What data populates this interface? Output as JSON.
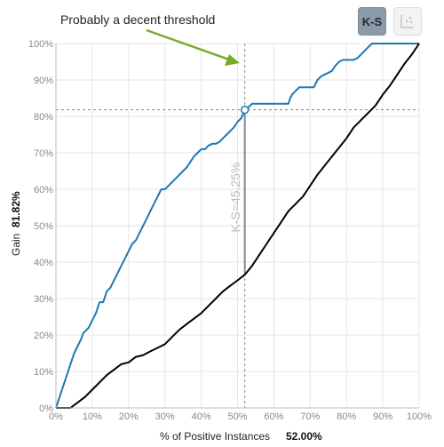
{
  "toolbar": {
    "ks_label": "K-S",
    "ks_button_color": "#8a9aa7",
    "scatter_icon": "scatter-plot-icon"
  },
  "chart_data": {
    "type": "line",
    "title": "",
    "annotation": "Probably a decent threshold",
    "annotation_arrow_color": "#7aab28",
    "xlabel": "% of Positive Instances",
    "xvalue": "52.00%",
    "ylabel": "Gain",
    "yvalue": "81.82%",
    "ks_label": "K-S=45.25%",
    "xlim": [
      0,
      100
    ],
    "ylim": [
      0,
      100
    ],
    "grid": true,
    "threshold": {
      "x": 52.0,
      "y": 81.82,
      "y_lower": 36.57
    },
    "x_ticks": [
      "0%",
      "10%",
      "20%",
      "30%",
      "40%",
      "50%",
      "60%",
      "70%",
      "80%",
      "90%",
      "100%"
    ],
    "y_ticks": [
      "0%",
      "10%",
      "20%",
      "30%",
      "40%",
      "50%",
      "60%",
      "70%",
      "80%",
      "90%",
      "100%"
    ],
    "series": [
      {
        "color": "#1f78b4",
        "x": [
          0,
          2,
          4,
          5,
          6,
          6.5,
          7,
          7.5,
          8,
          9,
          10,
          11,
          12,
          13,
          14,
          15,
          16,
          17,
          18,
          19,
          20,
          21,
          22,
          23,
          24,
          25,
          26,
          27,
          28,
          29,
          30,
          31,
          32,
          33,
          34,
          35,
          36,
          37,
          38,
          39,
          40,
          41,
          42,
          43,
          44,
          45,
          46,
          47,
          48,
          49,
          50,
          51,
          52,
          53,
          54,
          56,
          58,
          60,
          62,
          64,
          64.5,
          65,
          66,
          67,
          68,
          69,
          70,
          71,
          72,
          73,
          74,
          75,
          76,
          77,
          78,
          79,
          80,
          81,
          82,
          83,
          84,
          85,
          86,
          87,
          88,
          89,
          90,
          95,
          100
        ],
        "y": [
          0,
          6,
          12,
          15,
          17,
          18,
          19,
          20.5,
          21,
          22,
          24,
          26,
          29,
          29,
          32,
          33,
          35,
          37,
          39,
          41,
          43,
          45,
          46,
          48,
          50,
          52,
          54,
          56,
          58,
          60,
          60,
          61,
          62,
          63,
          64,
          65,
          66,
          67.5,
          69,
          70,
          71,
          71,
          72,
          72.5,
          72.5,
          73,
          74,
          75,
          76,
          77,
          78.5,
          79.5,
          81.82,
          82.5,
          83.5,
          83.5,
          83.5,
          83.5,
          83.5,
          83.5,
          85,
          86,
          87,
          88,
          88,
          88,
          88,
          88,
          90,
          91,
          91.5,
          92,
          92.5,
          94,
          95,
          95.5,
          95.5,
          95.5,
          95.5,
          96,
          97,
          98,
          99,
          100,
          100,
          100,
          100,
          100,
          100
        ]
      },
      {
        "color": "#000000",
        "x": [
          0,
          2,
          4,
          6,
          8,
          10,
          12,
          14,
          16,
          18,
          20,
          22,
          24,
          26,
          28,
          30,
          32,
          34,
          36,
          38,
          40,
          42,
          44,
          46,
          48,
          50,
          52,
          54,
          56,
          58,
          60,
          62,
          64,
          66,
          68,
          70,
          72,
          74,
          76,
          78,
          80,
          82,
          84,
          86,
          88,
          90,
          92,
          94,
          96,
          98,
          100
        ],
        "y": [
          0,
          0,
          0,
          1.5,
          3,
          5,
          7,
          9,
          10.5,
          12,
          12.5,
          14,
          14.5,
          15.5,
          16.5,
          17.5,
          19.5,
          21.5,
          23,
          24.5,
          26,
          28,
          30,
          32,
          33.5,
          35,
          36.57,
          39,
          42,
          45,
          48,
          51,
          54,
          56,
          58,
          61,
          64,
          66.5,
          69,
          71.5,
          74,
          77,
          79,
          81,
          83,
          86,
          88.5,
          91.5,
          94.5,
          97,
          100
        ]
      }
    ]
  }
}
